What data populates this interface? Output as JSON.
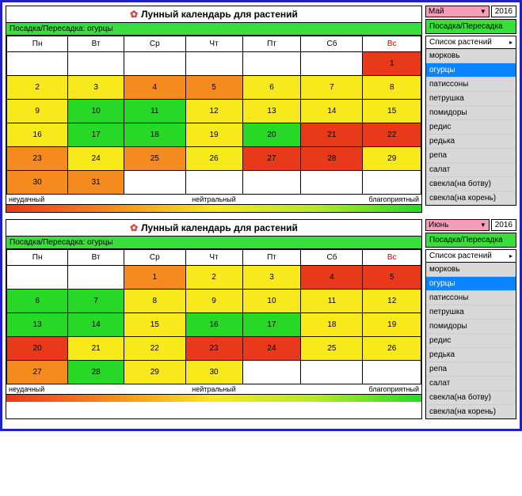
{
  "colors": {
    "bad": "#e83a1a",
    "orange": "#f58a1f",
    "yellow": "#f7e91c",
    "ygreen": "#b4e82a",
    "green": "#27d827",
    "white": "#ffffff"
  },
  "header": {
    "icon": "✿",
    "title": "Лунный календарь для растений"
  },
  "legend": {
    "bad": "неудачный",
    "neutral": "нейтральный",
    "good": "благоприятный"
  },
  "days": [
    "Пн",
    "Вт",
    "Ср",
    "Чт",
    "Пт",
    "Сб",
    "Вс"
  ],
  "sidebar": {
    "tab": "Посадка/Пересадка",
    "list_header": "Список растений",
    "plants": [
      "морковь",
      "огурцы",
      "патиссоны",
      "петрушка",
      "помидоры",
      "редис",
      "редька",
      "репа",
      "салат",
      "свекла(на ботву)",
      "свекла(на корень)"
    ],
    "selected": "огурцы"
  },
  "calendars": [
    {
      "month": "Май",
      "year": "2016",
      "subtitle": "Посадка/Пересадка: огурцы",
      "rows": [
        [
          [
            "",
            "white"
          ],
          [
            "",
            "white"
          ],
          [
            "",
            "white"
          ],
          [
            "",
            "white"
          ],
          [
            "",
            "white"
          ],
          [
            "",
            "white"
          ],
          [
            "1",
            "bad"
          ]
        ],
        [
          [
            "2",
            "yellow"
          ],
          [
            "3",
            "yellow"
          ],
          [
            "4",
            "orange"
          ],
          [
            "5",
            "orange"
          ],
          [
            "6",
            "yellow"
          ],
          [
            "7",
            "yellow"
          ],
          [
            "8",
            "yellow"
          ]
        ],
        [
          [
            "9",
            "yellow"
          ],
          [
            "10",
            "green"
          ],
          [
            "11",
            "green"
          ],
          [
            "12",
            "yellow"
          ],
          [
            "13",
            "yellow"
          ],
          [
            "14",
            "yellow"
          ],
          [
            "15",
            "yellow"
          ]
        ],
        [
          [
            "16",
            "yellow"
          ],
          [
            "17",
            "green"
          ],
          [
            "18",
            "green"
          ],
          [
            "19",
            "yellow"
          ],
          [
            "20",
            "green"
          ],
          [
            "21",
            "bad"
          ],
          [
            "22",
            "bad"
          ]
        ],
        [
          [
            "23",
            "orange"
          ],
          [
            "24",
            "yellow"
          ],
          [
            "25",
            "orange"
          ],
          [
            "26",
            "yellow"
          ],
          [
            "27",
            "bad"
          ],
          [
            "28",
            "bad"
          ],
          [
            "29",
            "yellow"
          ]
        ],
        [
          [
            "30",
            "orange"
          ],
          [
            "31",
            "orange"
          ],
          [
            "",
            "white"
          ],
          [
            "",
            "white"
          ],
          [
            "",
            "white"
          ],
          [
            "",
            "white"
          ],
          [
            "",
            "white"
          ]
        ]
      ]
    },
    {
      "month": "Июнь",
      "year": "2016",
      "subtitle": "Посадка/Пересадка: огурцы",
      "rows": [
        [
          [
            "",
            "white"
          ],
          [
            "",
            "white"
          ],
          [
            "1",
            "orange"
          ],
          [
            "2",
            "yellow"
          ],
          [
            "3",
            "yellow"
          ],
          [
            "4",
            "bad"
          ],
          [
            "5",
            "bad"
          ]
        ],
        [
          [
            "6",
            "green"
          ],
          [
            "7",
            "green"
          ],
          [
            "8",
            "yellow"
          ],
          [
            "9",
            "yellow"
          ],
          [
            "10",
            "yellow"
          ],
          [
            "11",
            "yellow"
          ],
          [
            "12",
            "yellow"
          ]
        ],
        [
          [
            "13",
            "green"
          ],
          [
            "14",
            "green"
          ],
          [
            "15",
            "yellow"
          ],
          [
            "16",
            "green"
          ],
          [
            "17",
            "green"
          ],
          [
            "18",
            "yellow"
          ],
          [
            "19",
            "yellow"
          ]
        ],
        [
          [
            "20",
            "bad"
          ],
          [
            "21",
            "yellow"
          ],
          [
            "22",
            "yellow"
          ],
          [
            "23",
            "bad"
          ],
          [
            "24",
            "bad"
          ],
          [
            "25",
            "yellow"
          ],
          [
            "26",
            "yellow"
          ]
        ],
        [
          [
            "27",
            "orange"
          ],
          [
            "28",
            "green"
          ],
          [
            "29",
            "yellow"
          ],
          [
            "30",
            "yellow"
          ],
          [
            "",
            "white"
          ],
          [
            "",
            "white"
          ],
          [
            "",
            "white"
          ]
        ]
      ]
    }
  ]
}
